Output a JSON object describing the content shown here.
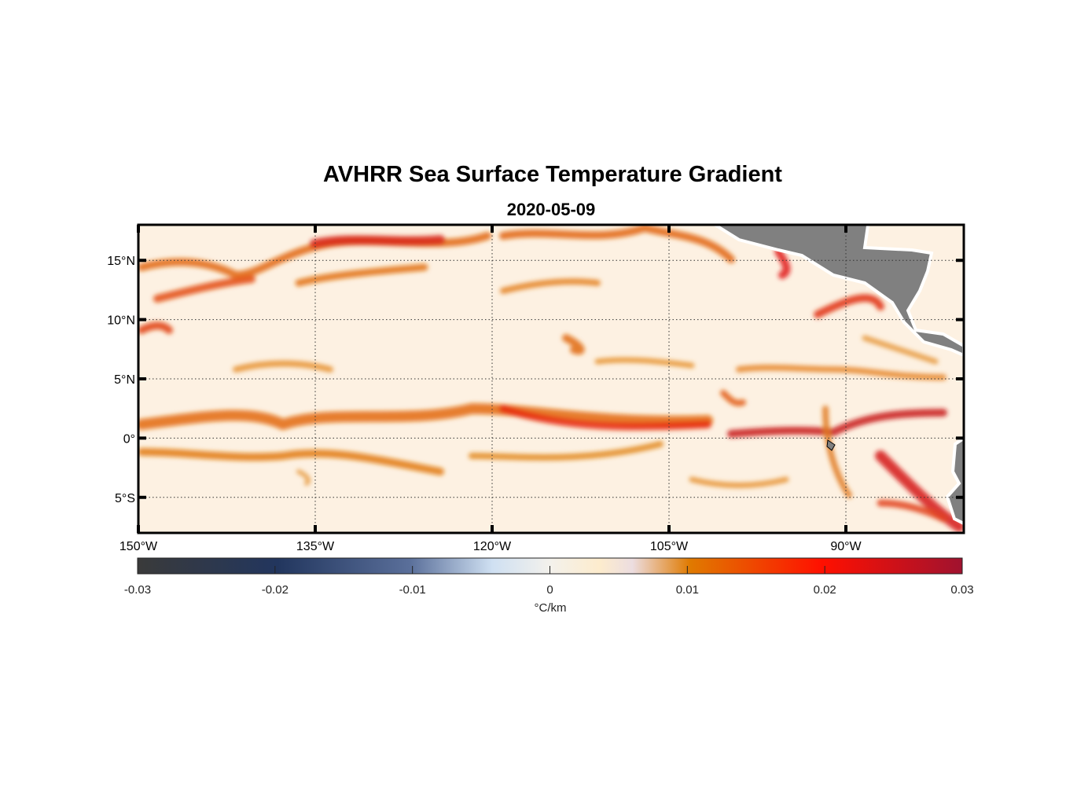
{
  "chart_data": {
    "type": "heatmap",
    "title": "AVHRR Sea Surface Temperature Gradient",
    "subtitle": "2020-05-09",
    "x_axis": {
      "range": [
        -150,
        -80
      ],
      "ticks": [
        -150,
        -135,
        -120,
        -105,
        -90
      ],
      "tick_labels": [
        "150°W",
        "135°W",
        "120°W",
        "105°W",
        "90°W"
      ]
    },
    "y_axis": {
      "range": [
        -8,
        18
      ],
      "ticks": [
        15,
        10,
        5,
        0,
        -5
      ],
      "tick_labels": [
        "15°N",
        "10°N",
        "5°N",
        "0°",
        "5°S"
      ]
    },
    "grid": true,
    "colorbar": {
      "range": [
        -0.03,
        0.03
      ],
      "ticks": [
        -0.03,
        -0.02,
        -0.01,
        0,
        0.01,
        0.02,
        0.03
      ],
      "tick_labels": [
        "-0.03",
        "-0.02",
        "-0.01",
        "0",
        "0.01",
        "0.02",
        "0.03"
      ],
      "label": "°C/km",
      "placement": "bottom",
      "colors": [
        "#3a3a3a",
        "#22365e",
        "#5a6f9a",
        "#cfe0f2",
        "#f3f1ec",
        "#fdeccd",
        "#e07a00",
        "#ff1000",
        "#a0122f"
      ]
    },
    "land_color": "#808080",
    "ocean_base_color": "#fdf1e2"
  }
}
